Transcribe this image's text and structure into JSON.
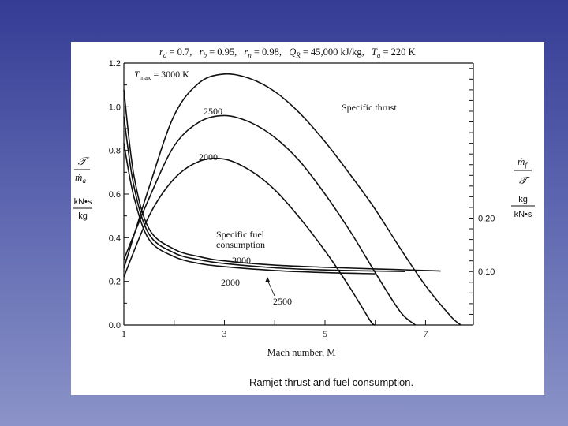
{
  "chart_data": {
    "type": "line",
    "header": "r_d = 0.7, r_b = 0.95, r_n = 0.98, Q_R = 45,000 kJ/kg, T_a = 220 K",
    "header_parts": {
      "rd_sym": "r",
      "rd_sub": "d",
      "rd_val": " = 0.7,",
      "rb_sym": "r",
      "rb_sub": "b",
      "rb_val": " = 0.95,",
      "rn_sym": "r",
      "rn_sub": "n",
      "rn_val": " = 0.98,",
      "q_sym": "Q",
      "q_sub": "R",
      "q_val": " = 45,000 kJ/kg,",
      "t_sym": "T",
      "t_sub": "a",
      "t_val": " = 220 K"
    },
    "caption": "Ramjet thrust and fuel consumption.",
    "xlabel": "Mach number, M",
    "xlim": [
      1,
      7.95
    ],
    "x_ticks": [
      1,
      3,
      5,
      7
    ],
    "left_axis": {
      "ylim": [
        0,
        1.2
      ],
      "ticks": [
        "0.0",
        "0.2",
        "0.4",
        "0.6",
        "0.8",
        "1.0",
        "1.2"
      ],
      "label_frac_top": "𝒯",
      "label_frac_bottom": "ṁ",
      "label_frac_bottom_sub": "a",
      "units_top": "kN•s",
      "units_bottom": "kg"
    },
    "right_axis": {
      "ylim": [
        0,
        0.49
      ],
      "ticks": [
        "0.10",
        "0.20"
      ],
      "tick_values": [
        0.1,
        0.2
      ],
      "label_frac_top": "ṁ",
      "label_frac_top_sub": "f",
      "label_frac_bottom": "𝒯",
      "units_top": "kg",
      "units_bottom": "kN•s"
    },
    "annotations": {
      "specific_thrust": "Specific thrust",
      "sfc_line1": "Specific fuel",
      "sfc_line2": "consumption",
      "tmax_prefix": "T",
      "tmax_sub": "max",
      "tmax_value": " = 3000 K",
      "label_2500_thrust": "2500",
      "label_2000_thrust": "2000",
      "label_3000_sfc": "3000",
      "label_2000_sfc": "2000",
      "label_2500_sfc": "2500"
    },
    "series": [
      {
        "name": "3000",
        "axis": "left",
        "points": [
          [
            1.0,
            0.26
          ],
          [
            1.5,
            0.63
          ],
          [
            2.0,
            0.96
          ],
          [
            2.5,
            1.11
          ],
          [
            3.0,
            1.15
          ],
          [
            3.5,
            1.13
          ],
          [
            4.0,
            1.07
          ],
          [
            4.5,
            0.97
          ],
          [
            5.0,
            0.84
          ],
          [
            5.5,
            0.69
          ],
          [
            6.0,
            0.53
          ],
          [
            6.5,
            0.35
          ],
          [
            7.0,
            0.18
          ],
          [
            7.5,
            0.04
          ],
          [
            7.7,
            0.0
          ]
        ]
      },
      {
        "name": "2500",
        "axis": "left",
        "points": [
          [
            1.0,
            0.3
          ],
          [
            1.5,
            0.58
          ],
          [
            2.0,
            0.82
          ],
          [
            2.5,
            0.93
          ],
          [
            3.0,
            0.96
          ],
          [
            3.5,
            0.93
          ],
          [
            4.0,
            0.86
          ],
          [
            4.5,
            0.75
          ],
          [
            5.0,
            0.6
          ],
          [
            5.5,
            0.43
          ],
          [
            6.0,
            0.24
          ],
          [
            6.5,
            0.06
          ],
          [
            6.8,
            0.0
          ]
        ]
      },
      {
        "name": "2000",
        "axis": "left",
        "points": [
          [
            1.0,
            0.22
          ],
          [
            1.5,
            0.5
          ],
          [
            2.0,
            0.67
          ],
          [
            2.5,
            0.75
          ],
          [
            3.0,
            0.76
          ],
          [
            3.5,
            0.71
          ],
          [
            4.0,
            0.62
          ],
          [
            4.5,
            0.49
          ],
          [
            5.0,
            0.34
          ],
          [
            5.5,
            0.17
          ],
          [
            5.9,
            0.02
          ],
          [
            6.0,
            0.0
          ]
        ]
      },
      {
        "name": "SFC 3000",
        "axis": "right",
        "points": [
          [
            1.0,
            0.44
          ],
          [
            1.2,
            0.28
          ],
          [
            1.5,
            0.18
          ],
          [
            2.0,
            0.142
          ],
          [
            2.5,
            0.128
          ],
          [
            3.0,
            0.12
          ],
          [
            4.0,
            0.112
          ],
          [
            5.0,
            0.108
          ],
          [
            6.0,
            0.105
          ],
          [
            7.0,
            0.102
          ],
          [
            7.3,
            0.101
          ]
        ]
      },
      {
        "name": "SFC 2500",
        "axis": "right",
        "points": [
          [
            1.0,
            0.39
          ],
          [
            1.2,
            0.26
          ],
          [
            1.5,
            0.17
          ],
          [
            2.0,
            0.135
          ],
          [
            2.5,
            0.122
          ],
          [
            3.0,
            0.115
          ],
          [
            4.0,
            0.107
          ],
          [
            5.0,
            0.103
          ],
          [
            6.0,
            0.101
          ],
          [
            6.6,
            0.1
          ]
        ]
      },
      {
        "name": "SFC 2000",
        "axis": "right",
        "points": [
          [
            1.0,
            0.34
          ],
          [
            1.2,
            0.24
          ],
          [
            1.5,
            0.16
          ],
          [
            2.0,
            0.128
          ],
          [
            2.5,
            0.115
          ],
          [
            3.0,
            0.109
          ],
          [
            4.0,
            0.102
          ],
          [
            5.0,
            0.098
          ],
          [
            6.0,
            0.096
          ]
        ]
      }
    ]
  }
}
